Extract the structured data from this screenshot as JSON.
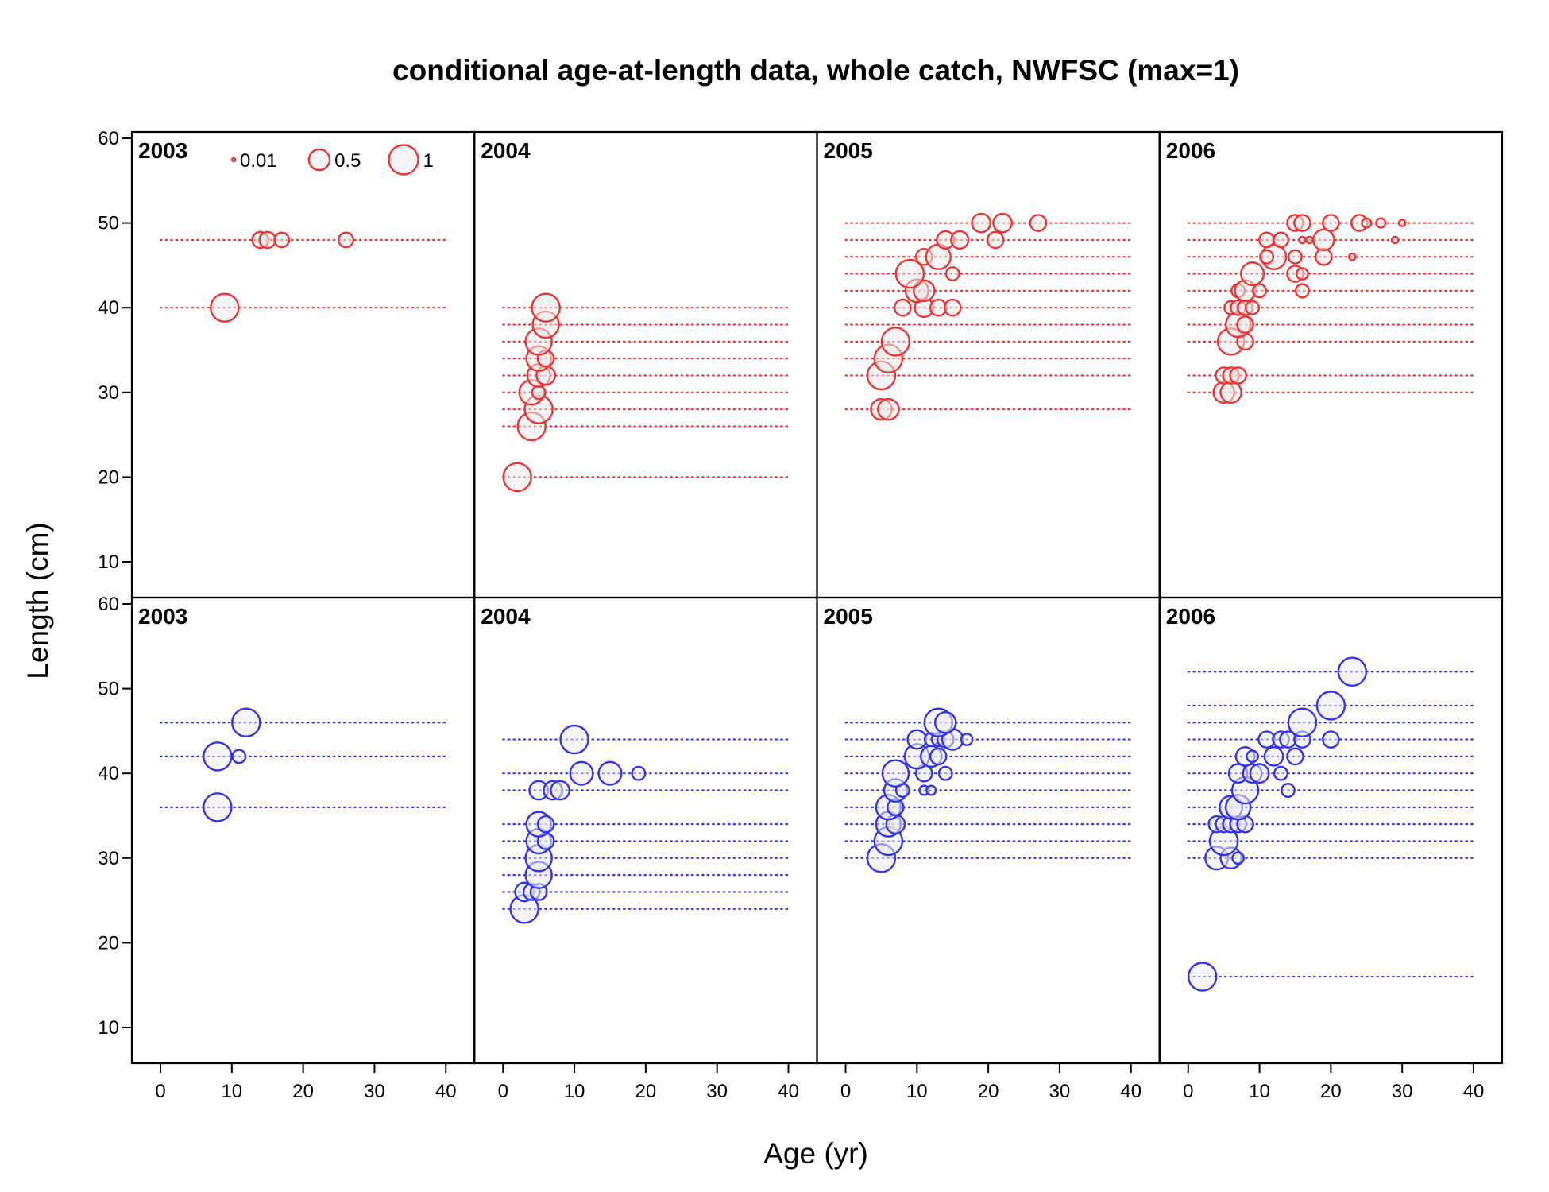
{
  "chart_data": {
    "type": "scatter",
    "title": "conditional age-at-length data, whole catch, NWFSC (max=1)",
    "xlabel": "Age (yr)",
    "ylabel": "Length (cm)",
    "xlim": [
      0,
      40
    ],
    "ylim": [
      10,
      60
    ],
    "x_ticks": [
      0,
      10,
      20,
      30,
      40
    ],
    "y_ticks": [
      10,
      20,
      30,
      40,
      50,
      60
    ],
    "colors": {
      "female": "#ee3333",
      "male": "#3333ee"
    },
    "legend": {
      "placement": "top-left of first panel",
      "entries": [
        {
          "label": "0.01",
          "value": 0.01
        },
        {
          "label": "0.5",
          "value": 0.5
        },
        {
          "label": "1",
          "value": 1
        }
      ]
    },
    "panels": [
      {
        "year": "2003",
        "sex": "female",
        "lengths": [
          40,
          48
        ],
        "points": [
          [
            9,
            40,
            0.9
          ],
          [
            14,
            48,
            0.3
          ],
          [
            15,
            48,
            0.3
          ],
          [
            17,
            48,
            0.25
          ],
          [
            26,
            48,
            0.25
          ]
        ]
      },
      {
        "year": "2004",
        "sex": "female",
        "lengths": [
          20,
          26,
          28,
          30,
          32,
          34,
          36,
          38,
          40
        ],
        "points": [
          [
            2,
            20,
            0.9
          ],
          [
            4,
            26,
            0.9
          ],
          [
            5,
            28,
            0.9
          ],
          [
            4,
            30,
            0.7
          ],
          [
            5,
            30,
            0.2
          ],
          [
            5,
            32,
            0.6
          ],
          [
            6,
            32,
            0.4
          ],
          [
            5,
            34,
            0.7
          ],
          [
            6,
            34,
            0.3
          ],
          [
            5,
            36,
            0.8
          ],
          [
            6,
            38,
            0.8
          ],
          [
            6,
            40,
            0.9
          ]
        ]
      },
      {
        "year": "2005",
        "sex": "female",
        "lengths": [
          28,
          32,
          34,
          36,
          38,
          40,
          42,
          44,
          46,
          48,
          50
        ],
        "points": [
          [
            5,
            28,
            0.5
          ],
          [
            6,
            28,
            0.5
          ],
          [
            5,
            32,
            0.9
          ],
          [
            6,
            34,
            0.9
          ],
          [
            7,
            36,
            0.9
          ],
          [
            8,
            40,
            0.3
          ],
          [
            11,
            40,
            0.4
          ],
          [
            13,
            40,
            0.3
          ],
          [
            15,
            40,
            0.3
          ],
          [
            10,
            42,
            0.6
          ],
          [
            11,
            42,
            0.5
          ],
          [
            9,
            44,
            0.9
          ],
          [
            15,
            44,
            0.2
          ],
          [
            11,
            46,
            0.3
          ],
          [
            13,
            46,
            0.7
          ],
          [
            14,
            48,
            0.35
          ],
          [
            16,
            48,
            0.35
          ],
          [
            21,
            48,
            0.3
          ],
          [
            19,
            50,
            0.4
          ],
          [
            22,
            50,
            0.4
          ],
          [
            27,
            50,
            0.3
          ]
        ]
      },
      {
        "year": "2006",
        "sex": "female",
        "lengths": [
          30,
          32,
          36,
          38,
          40,
          42,
          44,
          46,
          48,
          50
        ],
        "points": [
          [
            5,
            30,
            0.5
          ],
          [
            6,
            30,
            0.5
          ],
          [
            5,
            32,
            0.3
          ],
          [
            6,
            32,
            0.3
          ],
          [
            7,
            32,
            0.3
          ],
          [
            6,
            36,
            0.8
          ],
          [
            8,
            36,
            0.3
          ],
          [
            7,
            38,
            0.7
          ],
          [
            8,
            38,
            0.3
          ],
          [
            6,
            40,
            0.2
          ],
          [
            7,
            40,
            0.25
          ],
          [
            8,
            40,
            0.25
          ],
          [
            9,
            40,
            0.2
          ],
          [
            7,
            42,
            0.2
          ],
          [
            8,
            42,
            0.5
          ],
          [
            10,
            42,
            0.2
          ],
          [
            9,
            44,
            0.6
          ],
          [
            15,
            44,
            0.3
          ],
          [
            16,
            44,
            0.15
          ],
          [
            16,
            42,
            0.2
          ],
          [
            12,
            46,
            0.7
          ],
          [
            11,
            46,
            0.2
          ],
          [
            15,
            46,
            0.2
          ],
          [
            19,
            46,
            0.3
          ],
          [
            23,
            46,
            0.05
          ],
          [
            11,
            48,
            0.25
          ],
          [
            13,
            48,
            0.25
          ],
          [
            16,
            48,
            0.05
          ],
          [
            17,
            48,
            0.05
          ],
          [
            19,
            48,
            0.5
          ],
          [
            29,
            48,
            0.05
          ],
          [
            15,
            50,
            0.3
          ],
          [
            16,
            50,
            0.3
          ],
          [
            20,
            50,
            0.3
          ],
          [
            24,
            50,
            0.3
          ],
          [
            25,
            50,
            0.1
          ],
          [
            27,
            50,
            0.1
          ],
          [
            30,
            50,
            0.05
          ]
        ]
      },
      {
        "year": "2003",
        "sex": "male",
        "lengths": [
          36,
          42,
          46
        ],
        "points": [
          [
            8,
            36,
            0.9
          ],
          [
            8,
            42,
            0.9
          ],
          [
            11,
            42,
            0.2
          ],
          [
            12,
            46,
            0.9
          ]
        ]
      },
      {
        "year": "2004",
        "sex": "male",
        "lengths": [
          24,
          26,
          28,
          30,
          32,
          34,
          38,
          40,
          44
        ],
        "points": [
          [
            3,
            24,
            0.9
          ],
          [
            3,
            26,
            0.4
          ],
          [
            4,
            26,
            0.3
          ],
          [
            5,
            26,
            0.3
          ],
          [
            5,
            28,
            0.8
          ],
          [
            5,
            30,
            0.8
          ],
          [
            5,
            32,
            0.7
          ],
          [
            6,
            32,
            0.3
          ],
          [
            5,
            34,
            0.7
          ],
          [
            6,
            34,
            0.3
          ],
          [
            5,
            38,
            0.4
          ],
          [
            7,
            38,
            0.4
          ],
          [
            8,
            38,
            0.4
          ],
          [
            11,
            40,
            0.6
          ],
          [
            15,
            40,
            0.6
          ],
          [
            19,
            40,
            0.2
          ],
          [
            10,
            44,
            0.9
          ]
        ]
      },
      {
        "year": "2005",
        "sex": "male",
        "lengths": [
          30,
          32,
          34,
          36,
          38,
          40,
          42,
          44,
          46
        ],
        "points": [
          [
            5,
            30,
            0.9
          ],
          [
            6,
            32,
            0.9
          ],
          [
            6,
            34,
            0.7
          ],
          [
            7,
            34,
            0.4
          ],
          [
            6,
            36,
            0.7
          ],
          [
            7,
            36,
            0.3
          ],
          [
            7,
            38,
            0.6
          ],
          [
            8,
            38,
            0.2
          ],
          [
            11,
            38,
            0.1
          ],
          [
            12,
            38,
            0.1
          ],
          [
            7,
            40,
            0.8
          ],
          [
            11,
            40,
            0.3
          ],
          [
            14,
            40,
            0.2
          ],
          [
            10,
            42,
            0.7
          ],
          [
            12,
            42,
            0.5
          ],
          [
            13,
            42,
            0.3
          ],
          [
            10,
            44,
            0.4
          ],
          [
            12,
            44,
            0.2
          ],
          [
            13,
            44,
            0.2
          ],
          [
            14,
            44,
            0.3
          ],
          [
            15,
            44,
            0.5
          ],
          [
            17,
            44,
            0.15
          ],
          [
            13,
            46,
            0.9
          ],
          [
            14,
            46,
            0.5
          ]
        ]
      },
      {
        "year": "2006",
        "sex": "male",
        "lengths": [
          16,
          30,
          32,
          34,
          36,
          38,
          40,
          42,
          44,
          46,
          48,
          52
        ],
        "points": [
          [
            2,
            16,
            0.9
          ],
          [
            4,
            30,
            0.6
          ],
          [
            6,
            30,
            0.5
          ],
          [
            7,
            30,
            0.15
          ],
          [
            5,
            32,
            0.9
          ],
          [
            4,
            34,
            0.3
          ],
          [
            5,
            34,
            0.3
          ],
          [
            6,
            34,
            0.3
          ],
          [
            7,
            34,
            0.3
          ],
          [
            8,
            34,
            0.3
          ],
          [
            6,
            36,
            0.6
          ],
          [
            7,
            36,
            0.7
          ],
          [
            8,
            38,
            0.8
          ],
          [
            14,
            38,
            0.2
          ],
          [
            7,
            40,
            0.4
          ],
          [
            9,
            40,
            0.4
          ],
          [
            10,
            40,
            0.4
          ],
          [
            13,
            40,
            0.2
          ],
          [
            8,
            42,
            0.4
          ],
          [
            9,
            42,
            0.15
          ],
          [
            12,
            42,
            0.4
          ],
          [
            15,
            42,
            0.3
          ],
          [
            11,
            44,
            0.3
          ],
          [
            13,
            44,
            0.3
          ],
          [
            14,
            44,
            0.3
          ],
          [
            16,
            44,
            0.3
          ],
          [
            20,
            44,
            0.3
          ],
          [
            16,
            46,
            0.9
          ],
          [
            20,
            48,
            0.9
          ],
          [
            23,
            52,
            0.9
          ]
        ]
      }
    ]
  }
}
